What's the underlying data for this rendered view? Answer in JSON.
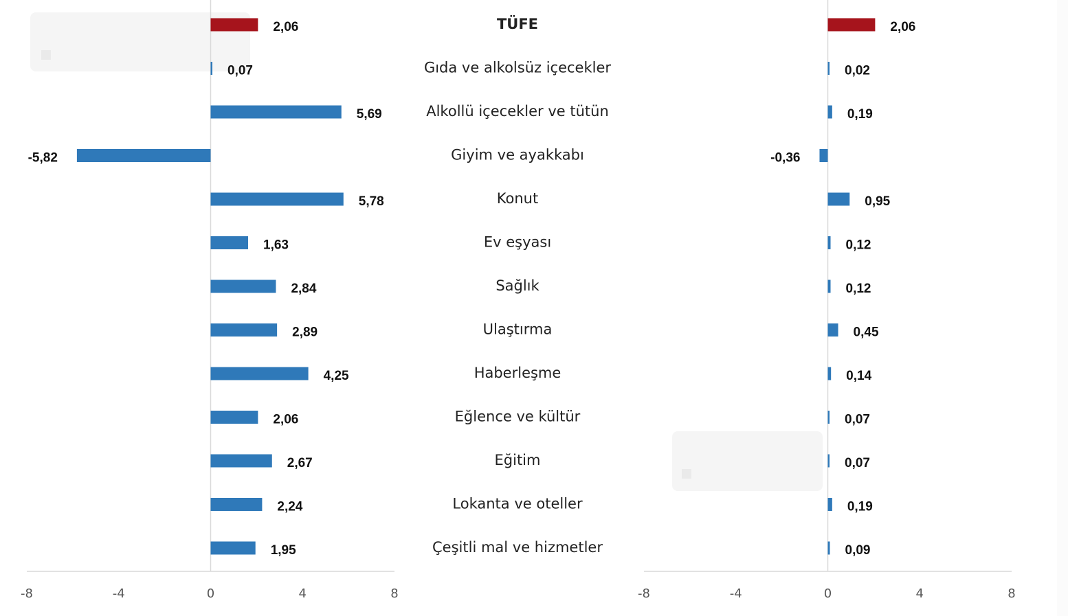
{
  "chart_data": {
    "type": "bar",
    "orientation": "horizontal",
    "categories": [
      "TÜFE",
      "Gıda ve alkolsüz içecekler",
      "Alkollü içecekler ve tütün",
      "Giyim ve ayakkabı",
      "Konut",
      "Ev eşyası",
      "Sağlık",
      "Ulaştırma",
      "Haberleşme",
      "Eğlence ve kültür",
      "Eğitim",
      "Lokanta ve oteller",
      "Çeşitli mal ve hizmetler"
    ],
    "panels": [
      {
        "name": "left",
        "values": [
          2.06,
          0.07,
          5.69,
          -5.82,
          5.78,
          1.63,
          2.84,
          2.89,
          4.25,
          2.06,
          2.67,
          2.24,
          1.95
        ],
        "labels": [
          "2,06",
          "0,07",
          "5,69",
          "-5,82",
          "5,78",
          "1,63",
          "2,84",
          "2,89",
          "4,25",
          "2,06",
          "2,67",
          "2,24",
          "1,95"
        ],
        "xlim": [
          -8,
          8
        ],
        "ticks": [
          "-8",
          "-4",
          "0",
          "4",
          "8"
        ]
      },
      {
        "name": "right",
        "values": [
          2.06,
          0.02,
          0.19,
          -0.36,
          0.95,
          0.12,
          0.12,
          0.45,
          0.14,
          0.07,
          0.07,
          0.19,
          0.09
        ],
        "labels": [
          "2,06",
          "0,02",
          "0,19",
          "-0,36",
          "0,95",
          "0,12",
          "0,12",
          "0,45",
          "0,14",
          "0,07",
          "0,07",
          "0,19",
          "0,09"
        ],
        "xlim": [
          -8,
          8
        ],
        "ticks": [
          "-8",
          "-4",
          "0",
          "4",
          "8"
        ]
      }
    ],
    "highlight_index": 0,
    "colors": {
      "highlight": "#a6141c",
      "bar": "#2f79b9",
      "axis": "#d9d9d9",
      "tick_text": "#555555",
      "value_text": "#111111",
      "category_text": "#222222"
    }
  }
}
